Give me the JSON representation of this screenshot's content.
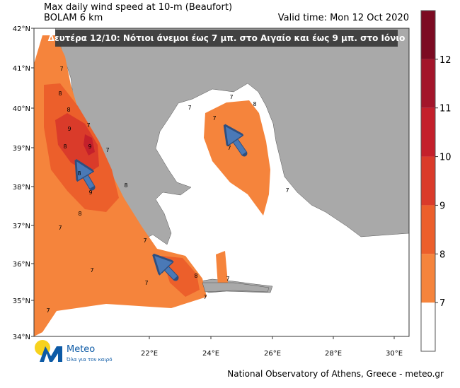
{
  "map": {
    "title": "Max daily wind speed at 10-m (Beaufort)",
    "subtitle": "BOLAM 6 km",
    "valid_time": "Valid time: Mon 12 Oct 2020",
    "banner": "Δευτέρα 12/10: Νότιοι άνεμοι έως 7 μπ. στο Αιγαίο και έως 9 μπ. στο Ιόνιο",
    "lat_labels": [
      "42°N",
      "41°N",
      "40°N",
      "39°N",
      "38°N",
      "37°N",
      "36°N",
      "35°N",
      "34°N"
    ],
    "lon_labels": [
      "22°E",
      "24°E",
      "26°E",
      "28°E",
      "30°E"
    ],
    "colorbar": {
      "levels": [
        7,
        8,
        9,
        10,
        11,
        12
      ],
      "colors": [
        "#ffffff",
        "#f5843c",
        "#ec5f2b",
        "#da3b2a",
        "#c4202b",
        "#a3152a",
        "#7c0b22"
      ]
    },
    "contour_labels": [
      "7",
      "8",
      "8",
      "9",
      "8",
      "7",
      "9",
      "8",
      "9",
      "8",
      "7",
      "7",
      "7",
      "8",
      "7",
      "7",
      "7",
      "8",
      "7",
      "7",
      "7",
      "7",
      "7",
      "8",
      "7",
      "7"
    ],
    "logo": {
      "name": "Meteo",
      "tagline": "Όλα για τον καιρό"
    },
    "footer": "National Observatory of Athens, Greece - meteo.gr"
  }
}
